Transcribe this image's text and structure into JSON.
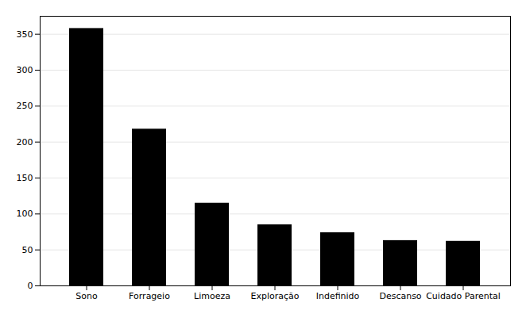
{
  "chart_data": {
    "type": "bar",
    "categories": [
      "Sono",
      "Forrageio",
      "Limoeza",
      "Exploração",
      "Indefinido",
      "Descanso",
      "Cuidado Parental"
    ],
    "values": [
      358,
      218,
      115,
      85,
      74,
      63,
      62
    ],
    "ylim": [
      0,
      375
    ],
    "yticks": [
      0,
      50,
      100,
      150,
      200,
      250,
      300,
      350
    ],
    "grid": true
  }
}
